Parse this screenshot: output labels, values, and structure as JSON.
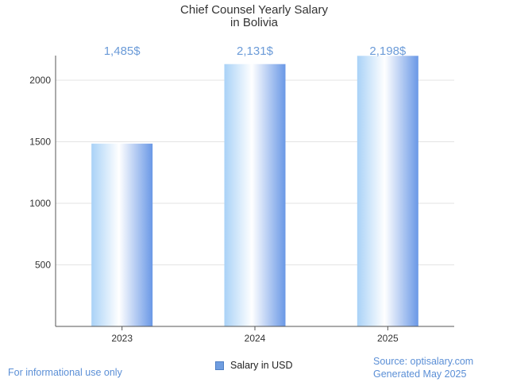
{
  "chart_data": {
    "type": "bar",
    "title_lines": [
      "Chief Counsel Yearly Salary",
      "in Bolivia"
    ],
    "categories": [
      "2023",
      "2024",
      "2025"
    ],
    "series": [
      {
        "name": "Salary in USD",
        "values": [
          1485,
          2131,
          2198
        ]
      }
    ],
    "data_labels": [
      "1,485$",
      "2,131$",
      "2,198$"
    ],
    "yticks": [
      500,
      1000,
      1500,
      2000
    ],
    "ylim": [
      0,
      2200
    ],
    "grid": true,
    "legend_position": "bottom-center",
    "bar_color": "#6f9de0"
  },
  "footer": {
    "left": "For informational use only",
    "source": "Source: optisalary.com",
    "generated": "Generated May 2025"
  }
}
